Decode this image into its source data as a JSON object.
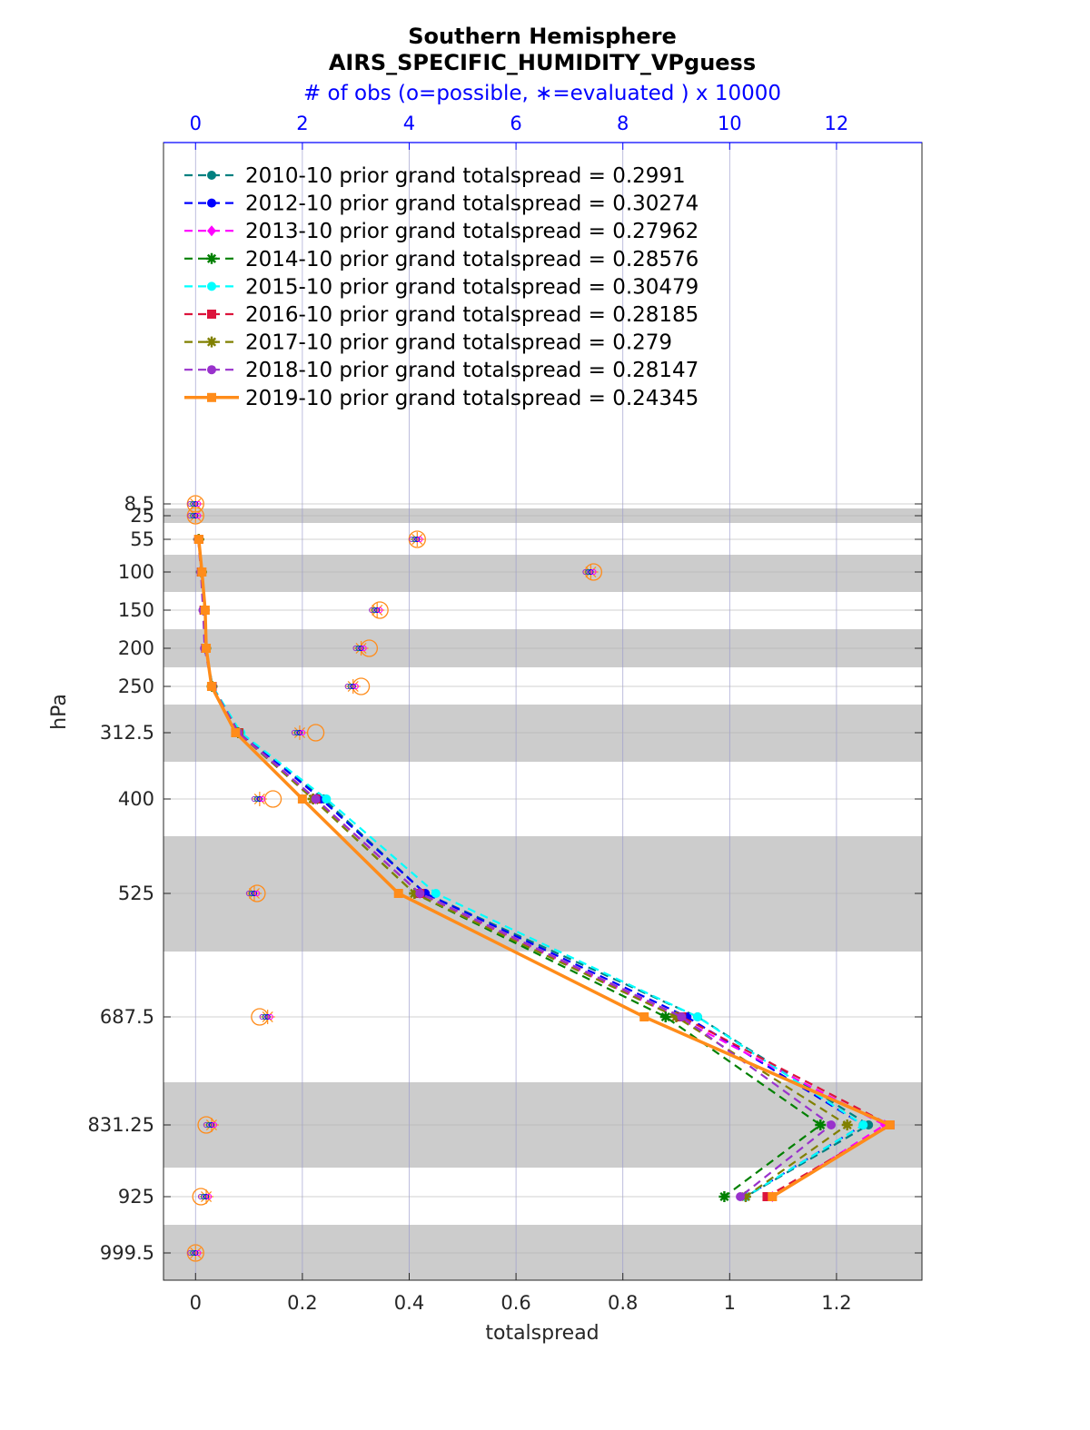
{
  "chart_data": {
    "type": "line",
    "title": "Southern Hemisphere",
    "subtitle": "AIRS_SPECIFIC_HUMIDITY_VPguess",
    "top_axis_label": "# of obs (o=possible, ∗=evaluated ) x 10000",
    "xlabel": "totalspread",
    "ylabel": "hPa",
    "xlim": [
      -0.06,
      1.36
    ],
    "x_ticks": [
      0,
      0.2,
      0.4,
      0.6,
      0.8,
      1,
      1.2
    ],
    "x_tick_labels": [
      "0",
      "0.2",
      "0.4",
      "0.6",
      "0.8",
      "1",
      "1.2"
    ],
    "top_ticks": [
      0,
      2,
      4,
      6,
      8,
      10,
      12
    ],
    "top_tick_labels": [
      "0",
      "2",
      "4",
      "6",
      "8",
      "10",
      "12"
    ],
    "levels": [
      8.5,
      25,
      55,
      100,
      150,
      200,
      250,
      312.5,
      400,
      525,
      687.5,
      831.25,
      925,
      999.5
    ],
    "level_labels": [
      "8.5",
      "25",
      "55",
      "100",
      "150",
      "200",
      "250",
      "312.5",
      "400",
      "525",
      "687.5",
      "831.25",
      "925",
      "999.5"
    ],
    "grid": true,
    "legend_position": "top-left",
    "series": [
      {
        "name": "2010-10 prior grand totalspread = 0.2991",
        "color": "#008080",
        "marker": "circle",
        "style": "dashed",
        "values": [
          null,
          null,
          0.006,
          0.011,
          0.016,
          0.019,
          0.031,
          0.082,
          0.24,
          0.43,
          0.94,
          1.26,
          1.03,
          null
        ]
      },
      {
        "name": "2012-10 prior grand totalspread = 0.30274",
        "color": "#0000ff",
        "marker": "circle",
        "style": "dashed",
        "values": [
          null,
          null,
          0.006,
          0.011,
          0.016,
          0.019,
          0.032,
          0.084,
          0.235,
          0.43,
          0.92,
          1.25,
          1.03,
          null
        ]
      },
      {
        "name": "2013-10 prior grand totalspread = 0.27962",
        "color": "#ff00ff",
        "marker": "diamond",
        "style": "dashed",
        "values": [
          null,
          null,
          0.006,
          0.011,
          0.016,
          0.019,
          0.031,
          0.081,
          0.225,
          0.42,
          0.9,
          1.29,
          1.08,
          null
        ]
      },
      {
        "name": "2014-10 prior grand totalspread = 0.28576",
        "color": "#008000",
        "marker": "star",
        "style": "dashed",
        "values": [
          null,
          null,
          0.006,
          0.011,
          0.016,
          0.019,
          0.031,
          0.08,
          0.22,
          0.41,
          0.88,
          1.17,
          0.99,
          null
        ]
      },
      {
        "name": "2015-10 prior grand totalspread = 0.30479",
        "color": "#00ffff",
        "marker": "circle",
        "style": "dashed",
        "values": [
          null,
          null,
          0.006,
          0.011,
          0.016,
          0.019,
          0.032,
          0.085,
          0.245,
          0.45,
          0.94,
          1.25,
          1.03,
          null
        ]
      },
      {
        "name": "2016-10 prior grand totalspread = 0.28185",
        "color": "#dc143c",
        "marker": "square",
        "style": "dashed",
        "values": [
          null,
          null,
          0.006,
          0.011,
          0.016,
          0.019,
          0.031,
          0.081,
          0.225,
          0.42,
          0.91,
          1.3,
          1.07,
          null
        ]
      },
      {
        "name": "2017-10 prior grand totalspread = 0.279",
        "color": "#808000",
        "marker": "star",
        "style": "dashed",
        "values": [
          null,
          null,
          0.006,
          0.011,
          0.016,
          0.019,
          0.031,
          0.08,
          0.22,
          0.41,
          0.9,
          1.22,
          1.03,
          null
        ]
      },
      {
        "name": "2018-10 prior grand totalspread = 0.28147",
        "color": "#9932cc",
        "marker": "circle",
        "style": "dashed",
        "values": [
          null,
          null,
          0.005,
          0.01,
          0.014,
          0.017,
          0.031,
          0.08,
          0.225,
          0.42,
          0.91,
          1.19,
          1.02,
          null
        ]
      },
      {
        "name": "2019-10 prior grand totalspread = 0.24345",
        "color": "#ff8c1a",
        "marker": "square",
        "style": "solid",
        "values": [
          null,
          null,
          0.006,
          0.012,
          0.018,
          0.02,
          0.03,
          0.075,
          0.2,
          0.38,
          0.84,
          1.3,
          1.08,
          null
        ]
      }
    ],
    "obs_possible_x10000": [
      0,
      0,
      4.15,
      7.45,
      3.45,
      3.25,
      3.1,
      2.25,
      1.45,
      1.15,
      1.2,
      0.2,
      0.1,
      0
    ],
    "obs_evaluated_x10000": [
      0,
      0,
      4.15,
      7.4,
      3.4,
      3.1,
      2.95,
      1.95,
      1.2,
      1.1,
      1.35,
      0.3,
      0.2,
      0
    ],
    "colors": {
      "top_axis": "#0000ff",
      "band": "#cccccc"
    }
  }
}
